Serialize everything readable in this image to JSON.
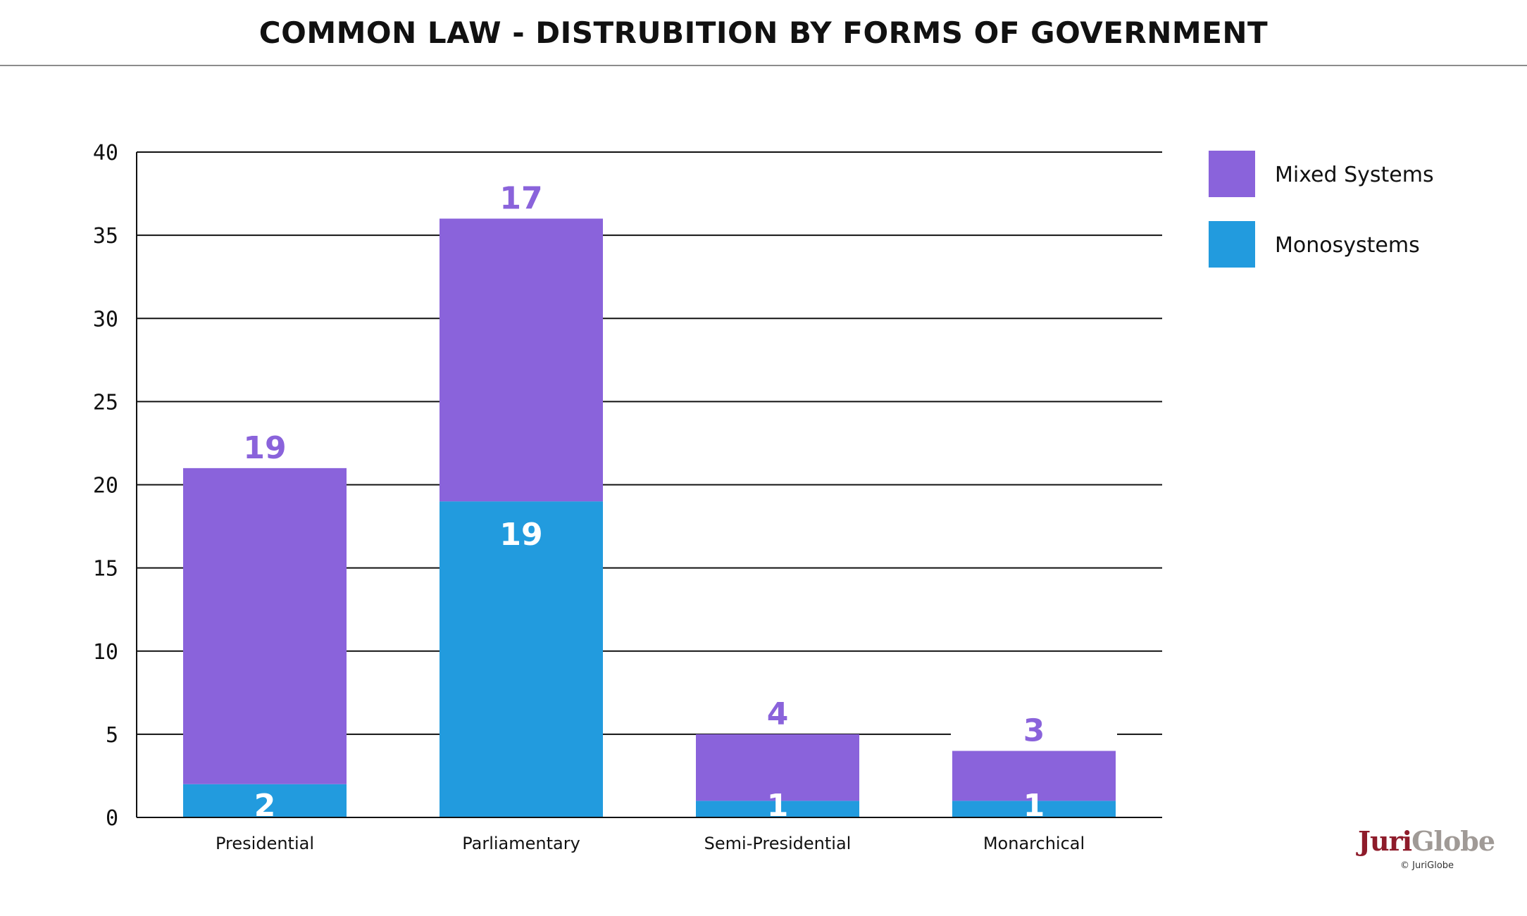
{
  "title": "COMMON LAW - DISTRUBITION BY FORMS OF GOVERNMENT",
  "logo": {
    "part1": "Juri",
    "part2": "Globe",
    "copyright": "© JuriGlobe"
  },
  "colors": {
    "mixed": "#8a63db",
    "mono": "#229bde"
  },
  "chart_data": {
    "type": "bar",
    "stacked": true,
    "categories": [
      "Presidential",
      "Parliamentary",
      "Semi-Presidential",
      "Monarchical"
    ],
    "series": [
      {
        "name": "Monosystems",
        "values": [
          2,
          19,
          1,
          1
        ]
      },
      {
        "name": "Mixed Systems",
        "values": [
          19,
          17,
          4,
          3
        ]
      }
    ],
    "ylim": [
      0,
      40
    ],
    "yticks": [
      0,
      5,
      10,
      15,
      20,
      25,
      30,
      35,
      40
    ],
    "grid": true,
    "legend_position": "right",
    "legend": [
      "Mixed Systems",
      "Monosystems"
    ]
  }
}
